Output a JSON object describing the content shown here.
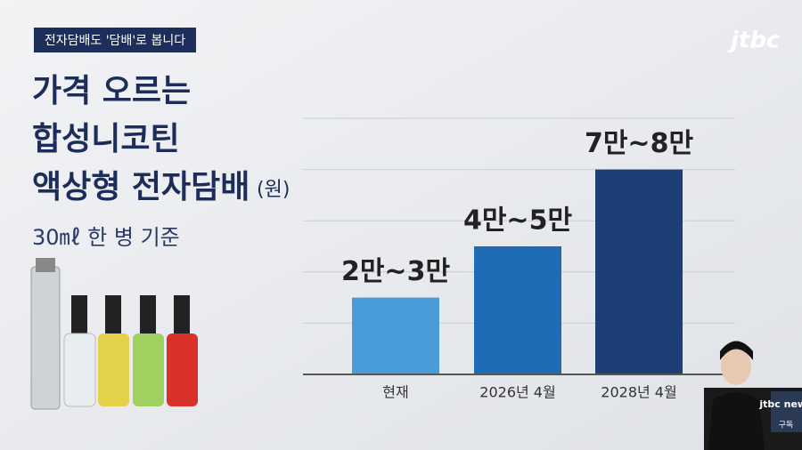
{
  "chart_data": {
    "type": "bar",
    "tag": "전자담배도 '담배'로 봅니다",
    "title": [
      "가격 오르는",
      "합성니코틴",
      "액상형 전자담배"
    ],
    "unit": "(원)",
    "subtitle": "30㎖ 한 병 기준",
    "logo": "jtbc",
    "corner_logo": "jtbc news",
    "corner_caption": "구독",
    "categories": [
      "현재",
      "2026년 4월",
      "2028년 4월"
    ],
    "values": [
      30000,
      50000,
      80000
    ],
    "value_labels": [
      "2만~3만",
      "4만~5만",
      "7만~8만"
    ],
    "colors": [
      "#4a9cd8",
      "#1d6cb4",
      "#1d3f75"
    ],
    "ylim": [
      0,
      100000
    ],
    "grid": true
  }
}
